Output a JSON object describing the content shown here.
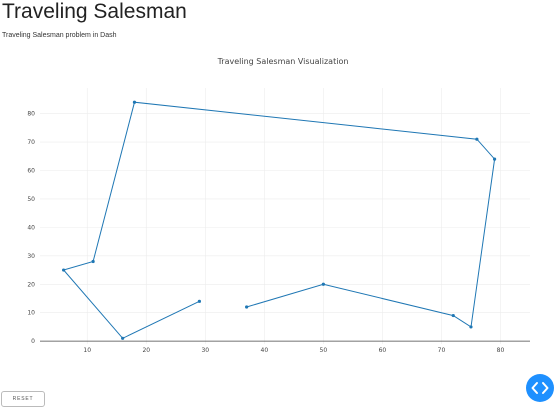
{
  "header": {
    "title": "Traveling Salesman",
    "subtitle": "Traveling Salesman problem in Dash"
  },
  "controls": {
    "reset_label": "RESET",
    "fab_icon": "code-brackets-icon",
    "fab_color": "#1e90ff"
  },
  "chart_data": {
    "type": "line",
    "title": "Traveling Salesman Visualization",
    "xlabel": "",
    "ylabel": "",
    "xlim": [
      2,
      85
    ],
    "ylim": [
      -1,
      89
    ],
    "xticks": [
      10,
      20,
      30,
      40,
      50,
      60,
      70,
      80
    ],
    "yticks": [
      0,
      10,
      20,
      30,
      40,
      50,
      60,
      70,
      80
    ],
    "grid": true,
    "line_color": "#1f77b4",
    "series": [
      {
        "x": [
          37,
          50,
          72,
          75,
          79,
          76,
          18,
          11,
          6,
          16,
          29
        ],
        "y": [
          12,
          20,
          9,
          5,
          64,
          71,
          84,
          28,
          25,
          1,
          14
        ]
      }
    ]
  }
}
